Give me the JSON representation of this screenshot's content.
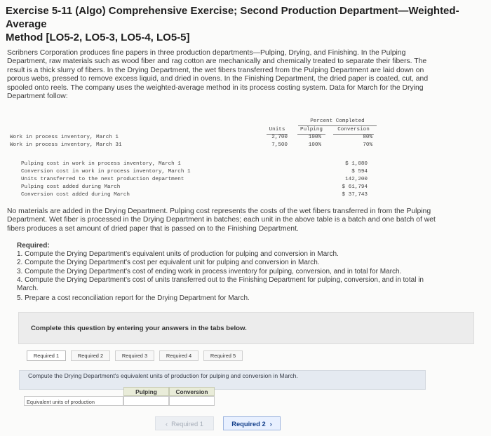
{
  "header": {
    "title_line1": "Exercise 5-11 (Algo) Comprehensive Exercise; Second Production Department—Weighted-Average",
    "title_line2": "Method [LO5-2, LO5-3, LO5-4, LO5-5]"
  },
  "intro": {
    "lines": [
      "Scribners Corporation produces fine papers in three production departments—Pulping, Drying, and Finishing. In the Pulping",
      "Department, raw materials such as wood fiber and rag cotton are mechanically and chemically treated to separate their fibers. The",
      "result is a thick slurry of fibers. In the Drying Department, the wet fibers transferred from the Pulping Department are laid down on",
      "porous webs, pressed to remove excess liquid, and dried in ovens. In the Finishing Department, the dried paper is coated, cut, and",
      "spooled onto reels. The company uses the weighted-average method in its process costing system. Data for March for the Drying",
      "Department follow:"
    ]
  },
  "data_table": {
    "percent_header": "Percent Completed",
    "col_units": "Units",
    "col_pulping": "Pulping",
    "col_conversion": "Conversion",
    "rows": [
      {
        "label": "Work in process inventory, March 1",
        "units": "2,700",
        "pulping": "100%",
        "conversion": "80%"
      },
      {
        "label": "Work in process inventory, March 31",
        "units": "7,500",
        "pulping": "100%",
        "conversion": "70%"
      }
    ]
  },
  "cost_table": {
    "rows": [
      {
        "label": "Pulping cost in work in process inventory, March 1",
        "value": "$ 1,080"
      },
      {
        "label": "Conversion cost in work in process inventory, March 1",
        "value": "$ 594"
      },
      {
        "label": "Units transferred to the next production department",
        "value": "142,200"
      },
      {
        "label": "Pulping cost added during March",
        "value": "$ 61,794"
      },
      {
        "label": "Conversion cost added during March",
        "value": "$ 37,743"
      }
    ]
  },
  "note": {
    "lines": [
      "No materials are added in the Drying Department. Pulping cost represents the costs of the wet fibers transferred in from the Pulping",
      "Department. Wet fiber is processed in the Drying Department in batches; each unit in the above table is a batch and one batch of wet",
      "fibers produces a set amount of dried paper that is passed on to the Finishing Department."
    ]
  },
  "required": {
    "heading": "Required:",
    "items": [
      "1. Compute the Drying Department's equivalent units of production for pulping and conversion in March.",
      "2. Compute the Drying Department's cost per equivalent unit for pulping and conversion in March.",
      "3. Compute the Drying Department's cost of ending work in process inventory for pulping, conversion, and in total for March.",
      "4. Compute the Drying Department's cost of units transferred out to the Finishing Department for pulping, conversion, and in total in",
      "March.",
      "5. Prepare a cost reconciliation report for the Drying Department for March."
    ]
  },
  "question": {
    "complete_text": "Complete this question by entering your answers in the tabs below.",
    "tabs": [
      "Required 1",
      "Required 2",
      "Required 3",
      "Required 4",
      "Required 5"
    ],
    "instruction": "Compute the Drying Department's equivalent units of production for pulping and conversion in March.",
    "answer_headers": [
      "Pulping",
      "Conversion"
    ],
    "answer_row_label": "Equivalent units of production",
    "prev_label": "Required 1",
    "next_label": "Required 2"
  }
}
